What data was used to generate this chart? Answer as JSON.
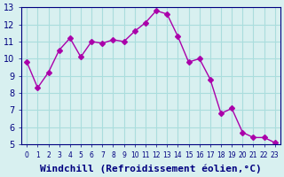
{
  "x": [
    0,
    1,
    2,
    3,
    4,
    5,
    6,
    7,
    8,
    9,
    10,
    11,
    12,
    13,
    14,
    15,
    16,
    17,
    18,
    19,
    20,
    21,
    22,
    23
  ],
  "y": [
    9.8,
    8.3,
    9.2,
    10.5,
    11.2,
    10.1,
    11.0,
    10.9,
    11.1,
    11.0,
    11.6,
    12.1,
    12.8,
    12.6,
    11.3,
    9.8,
    10.0,
    8.8,
    6.8,
    7.1,
    5.7,
    5.4,
    5.4,
    5.1
  ],
  "line_color": "#aa00aa",
  "marker": "D",
  "marker_size": 3,
  "bg_color": "#d8f0f0",
  "grid_color": "#aadddd",
  "xlabel": "Windchill (Refroidissement éolien,°C)",
  "xlabel_fontsize": 8,
  "xlim": [
    -0.5,
    23.5
  ],
  "ylim": [
    5,
    13
  ],
  "yticks": [
    5,
    6,
    7,
    8,
    9,
    10,
    11,
    12,
    13
  ],
  "xticks": [
    0,
    1,
    2,
    3,
    4,
    5,
    6,
    7,
    8,
    9,
    10,
    11,
    12,
    13,
    14,
    15,
    16,
    17,
    18,
    19,
    20,
    21,
    22,
    23
  ],
  "tick_fontsize": 7,
  "axis_label_color": "#000080",
  "tick_color": "#000080"
}
